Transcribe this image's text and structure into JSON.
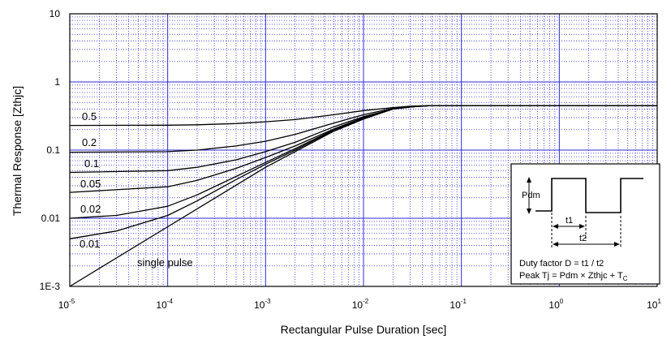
{
  "chart_data": {
    "type": "line",
    "title": "",
    "xlabel": "Rectangular Pulse Duration [sec]",
    "ylabel": "Thermal Response [Zthjc]",
    "xscale": "log",
    "yscale": "log",
    "xlim": [
      1e-05,
      10
    ],
    "ylim": [
      0.001,
      10
    ],
    "grid": true,
    "colors": {
      "major_grid": "#2b2bd6",
      "minor_grid": "#2b2bd6",
      "curve": "#000000"
    },
    "x_ticks": [
      {
        "value": 1e-05,
        "base": "10",
        "exp": "-5"
      },
      {
        "value": 0.0001,
        "base": "10",
        "exp": "-4"
      },
      {
        "value": 0.001,
        "base": "10",
        "exp": "-3"
      },
      {
        "value": 0.01,
        "base": "10",
        "exp": "-2"
      },
      {
        "value": 0.1,
        "base": "10",
        "exp": "-1"
      },
      {
        "value": 1,
        "base": "10",
        "exp": "0"
      },
      {
        "value": 10,
        "base": "10",
        "exp": "1"
      }
    ],
    "y_ticks": [
      {
        "value": 10,
        "label": "10"
      },
      {
        "value": 1,
        "label": "1"
      },
      {
        "value": 0.1,
        "label": "0.1"
      },
      {
        "value": 0.01,
        "label": "0.01"
      },
      {
        "value": 0.001,
        "label": "1E-3"
      }
    ],
    "series": [
      {
        "name": "0.5",
        "x": [
          1e-05,
          0.0001,
          0.0002,
          0.0005,
          0.001,
          0.002,
          0.005,
          0.01,
          0.02,
          0.03,
          0.05,
          0.1,
          1,
          10
        ],
        "y": [
          0.23,
          0.232,
          0.235,
          0.245,
          0.26,
          0.28,
          0.33,
          0.38,
          0.42,
          0.44,
          0.45,
          0.45,
          0.45,
          0.45
        ]
      },
      {
        "name": "0.2",
        "x": [
          1e-05,
          0.0001,
          0.0002,
          0.0005,
          0.001,
          0.002,
          0.005,
          0.01,
          0.02,
          0.03,
          0.05,
          0.1,
          1,
          10
        ],
        "y": [
          0.093,
          0.095,
          0.1,
          0.115,
          0.135,
          0.17,
          0.25,
          0.33,
          0.41,
          0.435,
          0.45,
          0.45,
          0.45,
          0.45
        ]
      },
      {
        "name": "0.1",
        "x": [
          1e-05,
          0.0001,
          0.0002,
          0.0005,
          0.001,
          0.002,
          0.005,
          0.01,
          0.02,
          0.03,
          0.05,
          0.1,
          1,
          10
        ],
        "y": [
          0.047,
          0.05,
          0.056,
          0.072,
          0.095,
          0.13,
          0.22,
          0.31,
          0.4,
          0.43,
          0.45,
          0.45,
          0.45,
          0.45
        ]
      },
      {
        "name": "0.05",
        "x": [
          1e-05,
          0.0001,
          0.0002,
          0.0005,
          0.001,
          0.002,
          0.005,
          0.01,
          0.02,
          0.03,
          0.05,
          0.1,
          1,
          10
        ],
        "y": [
          0.024,
          0.029,
          0.036,
          0.054,
          0.078,
          0.115,
          0.205,
          0.3,
          0.4,
          0.43,
          0.45,
          0.45,
          0.45,
          0.45
        ]
      },
      {
        "name": "0.02",
        "x": [
          1e-05,
          3e-05,
          0.0001,
          0.0002,
          0.0005,
          0.001,
          0.002,
          0.005,
          0.01,
          0.02,
          0.03,
          0.05,
          0.1,
          1,
          10
        ],
        "y": [
          0.01,
          0.011,
          0.015,
          0.022,
          0.041,
          0.066,
          0.105,
          0.2,
          0.295,
          0.4,
          0.43,
          0.45,
          0.45,
          0.45,
          0.45
        ]
      },
      {
        "name": "0.01",
        "x": [
          1e-05,
          3e-05,
          0.0001,
          0.0002,
          0.0005,
          0.001,
          0.002,
          0.005,
          0.01,
          0.02,
          0.03,
          0.05,
          0.1,
          1,
          10
        ],
        "y": [
          0.005,
          0.0065,
          0.011,
          0.018,
          0.037,
          0.062,
          0.1,
          0.195,
          0.29,
          0.4,
          0.43,
          0.45,
          0.45,
          0.45,
          0.45
        ]
      },
      {
        "name": "single pulse",
        "x": [
          1e-05,
          0.0001,
          0.001,
          0.002,
          0.005,
          0.01,
          0.02,
          0.03,
          0.05,
          0.1,
          1,
          10
        ],
        "y": [
          0.001,
          0.0075,
          0.056,
          0.095,
          0.19,
          0.285,
          0.4,
          0.43,
          0.45,
          0.45,
          0.45,
          0.45
        ]
      }
    ],
    "curve_labels": [
      {
        "series": "0.5",
        "text": "0.5"
      },
      {
        "series": "0.2",
        "text": "0.2"
      },
      {
        "series": "0.1",
        "text": "0.1"
      },
      {
        "series": "0.05",
        "text": "0.05"
      },
      {
        "series": "0.02",
        "text": "0.02"
      },
      {
        "series": "0.01",
        "text": "0.01"
      },
      {
        "series": "single pulse",
        "text": "single pulse"
      }
    ],
    "inset": {
      "pdm_label": "Pdm",
      "t1_label": "t1",
      "t2_label": "t2",
      "duty_text": "Duty factor D = t1 / t2",
      "peak_text_main": "Peak Tj = Pdm × Zthjc + T",
      "peak_text_sub": "C"
    }
  }
}
